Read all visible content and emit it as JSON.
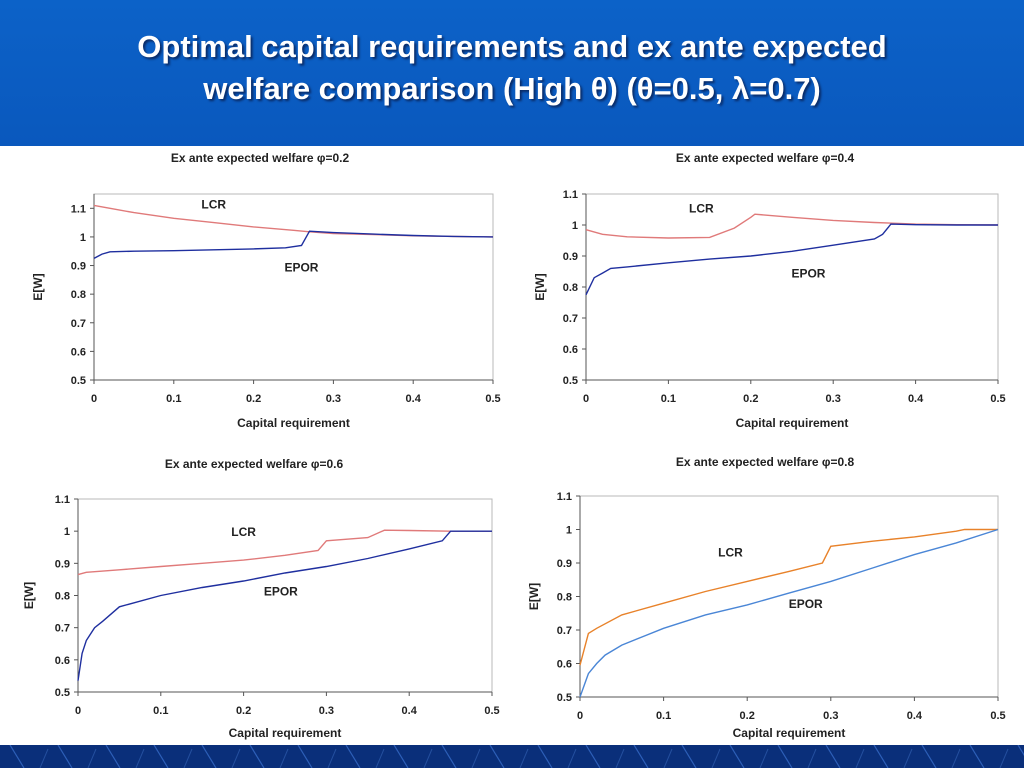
{
  "slide": {
    "title_line1": "Optimal capital requirements and ex ante expected",
    "title_line2": "welfare comparison (High θ) (θ=0.5, λ=0.7)"
  },
  "colors": {
    "header_bg": "#0a5cc2",
    "footer_bg": "#0a2f7a",
    "lcr_pink": "#e07a7a",
    "epor_navy": "#1f2f9f",
    "lcr_orange": "#e8822a",
    "epor_light": "#4a86d6"
  },
  "chart_data": [
    {
      "type": "line",
      "title": "Ex ante expected welfare φ=0.2",
      "xlabel": "Capital requirement",
      "ylabel": "E[W]",
      "xlim": [
        0,
        0.5
      ],
      "ylim": [
        0.5,
        1.15
      ],
      "xticks": [
        "0",
        "0.1",
        "0.2",
        "0.3",
        "0.4",
        "0.5"
      ],
      "yticks": [
        "0.5",
        "0.6",
        "0.7",
        "0.8",
        "0.9",
        "1",
        "1.1"
      ],
      "yticks_values": [
        0.5,
        0.6,
        0.7,
        0.8,
        0.9,
        1.0,
        1.1
      ],
      "series": [
        {
          "name": "LCR",
          "color": "#e07a7a",
          "label_at": [
            0.15,
            1.1
          ],
          "x": [
            0,
            0.02,
            0.05,
            0.1,
            0.15,
            0.2,
            0.25,
            0.27,
            0.3,
            0.35,
            0.4,
            0.45,
            0.5
          ],
          "y": [
            1.11,
            1.1,
            1.085,
            1.065,
            1.05,
            1.035,
            1.023,
            1.018,
            1.012,
            1.008,
            1.004,
            1.002,
            1.0
          ]
        },
        {
          "name": "EPOR",
          "color": "#1f2f9f",
          "label_at": [
            0.26,
            0.88
          ],
          "x": [
            0,
            0.01,
            0.02,
            0.05,
            0.1,
            0.15,
            0.2,
            0.24,
            0.26,
            0.27,
            0.3,
            0.35,
            0.4,
            0.45,
            0.5
          ],
          "y": [
            0.925,
            0.94,
            0.948,
            0.95,
            0.952,
            0.955,
            0.958,
            0.962,
            0.97,
            1.02,
            1.015,
            1.01,
            1.005,
            1.002,
            1.0
          ]
        }
      ]
    },
    {
      "type": "line",
      "title": "Ex ante expected welfare φ=0.4",
      "xlabel": "Capital requirement",
      "ylabel": "E[W]",
      "xlim": [
        0,
        0.5
      ],
      "ylim": [
        0.5,
        1.1
      ],
      "xticks": [
        "0",
        "0.1",
        "0.2",
        "0.3",
        "0.4",
        "0.5"
      ],
      "yticks": [
        "0.5",
        "0.6",
        "0.7",
        "0.8",
        "0.9",
        "1",
        "1.1"
      ],
      "yticks_values": [
        0.5,
        0.6,
        0.7,
        0.8,
        0.9,
        1.0,
        1.1
      ],
      "series": [
        {
          "name": "LCR",
          "color": "#e07a7a",
          "label_at": [
            0.14,
            1.04
          ],
          "x": [
            0,
            0.02,
            0.05,
            0.1,
            0.15,
            0.18,
            0.2,
            0.205,
            0.25,
            0.3,
            0.35,
            0.4,
            0.45,
            0.5
          ],
          "y": [
            0.985,
            0.97,
            0.962,
            0.958,
            0.96,
            0.99,
            1.025,
            1.035,
            1.025,
            1.015,
            1.008,
            1.003,
            1.001,
            1.0
          ]
        },
        {
          "name": "EPOR",
          "color": "#1f2f9f",
          "label_at": [
            0.27,
            0.83
          ],
          "x": [
            0,
            0.01,
            0.02,
            0.03,
            0.05,
            0.1,
            0.15,
            0.2,
            0.25,
            0.3,
            0.35,
            0.36,
            0.37,
            0.4,
            0.45,
            0.5
          ],
          "y": [
            0.775,
            0.83,
            0.845,
            0.86,
            0.865,
            0.878,
            0.89,
            0.9,
            0.915,
            0.935,
            0.955,
            0.97,
            1.003,
            1.001,
            1.0,
            1.0
          ]
        }
      ]
    },
    {
      "type": "line",
      "title": "Ex ante expected welfare φ=0.6",
      "xlabel": "Capital requirement",
      "ylabel": "E[W]",
      "xlim": [
        0,
        0.5
      ],
      "ylim": [
        0.5,
        1.1
      ],
      "xticks": [
        "0",
        "0.1",
        "0.2",
        "0.3",
        "0.4",
        "0.5"
      ],
      "yticks": [
        "0.5",
        "0.6",
        "0.7",
        "0.8",
        "0.9",
        "1",
        "1.1"
      ],
      "yticks_values": [
        0.5,
        0.6,
        0.7,
        0.8,
        0.9,
        1.0,
        1.1
      ],
      "series": [
        {
          "name": "LCR",
          "color": "#e07a7a",
          "label_at": [
            0.2,
            0.985
          ],
          "x": [
            0,
            0.01,
            0.05,
            0.1,
            0.15,
            0.2,
            0.25,
            0.29,
            0.3,
            0.35,
            0.37,
            0.4,
            0.45,
            0.5
          ],
          "y": [
            0.865,
            0.872,
            0.88,
            0.89,
            0.9,
            0.91,
            0.925,
            0.94,
            0.97,
            0.98,
            1.003,
            1.002,
            1.0,
            1.0
          ]
        },
        {
          "name": "EPOR",
          "color": "#1f2f9f",
          "label_at": [
            0.245,
            0.8
          ],
          "x": [
            0,
            0.005,
            0.01,
            0.02,
            0.03,
            0.05,
            0.1,
            0.15,
            0.2,
            0.25,
            0.3,
            0.35,
            0.4,
            0.44,
            0.45,
            0.5
          ],
          "y": [
            0.535,
            0.62,
            0.66,
            0.7,
            0.72,
            0.765,
            0.8,
            0.825,
            0.845,
            0.87,
            0.89,
            0.915,
            0.945,
            0.97,
            1.0,
            1.0
          ]
        }
      ]
    },
    {
      "type": "line",
      "title": "Ex ante expected welfare φ=0.8",
      "xlabel": "Capital requirement",
      "ylabel": "E[W]",
      "xlim": [
        0,
        0.5
      ],
      "ylim": [
        0.5,
        1.1
      ],
      "xticks": [
        "0",
        "0.1",
        "0.2",
        "0.3",
        "0.4",
        "0.5"
      ],
      "yticks": [
        "0.5",
        "0.6",
        "0.7",
        "0.8",
        "0.9",
        "1",
        "1.1"
      ],
      "yticks_values": [
        0.5,
        0.6,
        0.7,
        0.8,
        0.9,
        1.0,
        1.1
      ],
      "series": [
        {
          "name": "LCR",
          "color": "#e8822a",
          "label_at": [
            0.18,
            0.92
          ],
          "x": [
            0,
            0.01,
            0.02,
            0.05,
            0.1,
            0.15,
            0.2,
            0.25,
            0.29,
            0.3,
            0.35,
            0.4,
            0.45,
            0.46,
            0.5
          ],
          "y": [
            0.595,
            0.69,
            0.705,
            0.745,
            0.78,
            0.815,
            0.845,
            0.875,
            0.9,
            0.95,
            0.965,
            0.978,
            0.995,
            1.0,
            1.0
          ]
        },
        {
          "name": "EPOR",
          "color": "#4a86d6",
          "label_at": [
            0.27,
            0.765
          ],
          "x": [
            0,
            0.01,
            0.02,
            0.03,
            0.05,
            0.1,
            0.15,
            0.2,
            0.25,
            0.3,
            0.35,
            0.4,
            0.45,
            0.5
          ],
          "y": [
            0.5,
            0.57,
            0.6,
            0.625,
            0.655,
            0.705,
            0.745,
            0.775,
            0.81,
            0.845,
            0.885,
            0.925,
            0.96,
            1.0
          ]
        }
      ]
    }
  ]
}
